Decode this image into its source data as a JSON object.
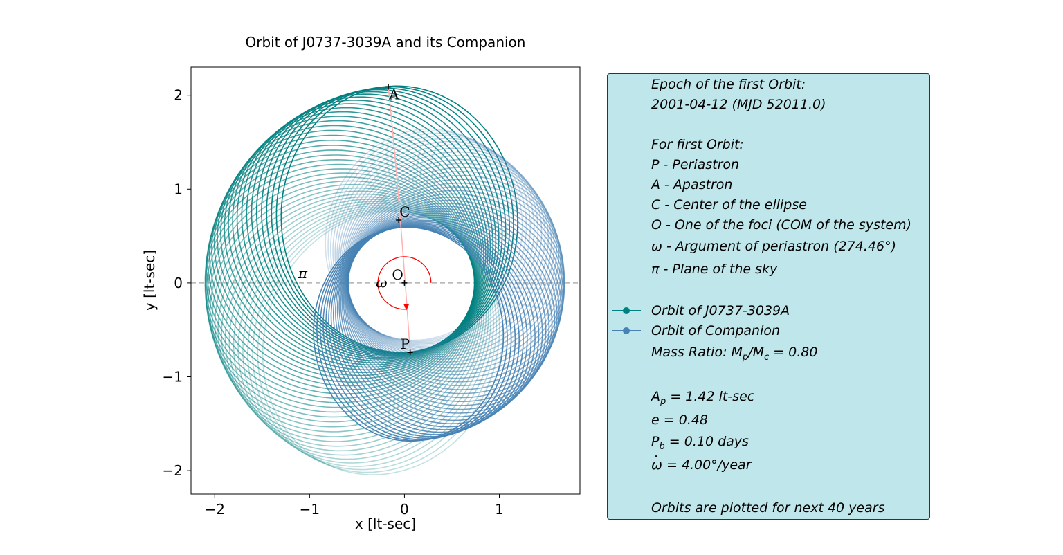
{
  "chart_data": {
    "type": "line",
    "title": "Orbit of J0737-3039A and its Companion",
    "xlabel": "x [lt-sec]",
    "ylabel": "y [lt-sec]",
    "xlim": [
      -2.25,
      1.85
    ],
    "ylim": [
      -2.25,
      2.3
    ],
    "xticks": [
      -2,
      -1,
      0,
      1
    ],
    "yticks": [
      -2,
      -1,
      0,
      1,
      2
    ],
    "xtick_labels": [
      "−2",
      "−1",
      "0",
      "1"
    ],
    "ytick_labels": [
      "−2",
      "−1",
      "0",
      "1",
      "2"
    ],
    "grid": false,
    "series": [
      {
        "name": "Orbit of J0737-3039A",
        "color": "#008080",
        "semi_major_axis": 1.42,
        "eccentricity": 0.48,
        "omega_start_deg": 274.46,
        "omega_dot_deg_per_year": 4.0,
        "years": 40
      },
      {
        "name": "Orbit of Companion",
        "color": "#4682b4",
        "semi_major_axis": 1.14,
        "eccentricity": 0.48,
        "omega_start_deg": 94.46,
        "omega_dot_deg_per_year": 4.0,
        "years": 40
      }
    ],
    "sky_plane_line": {
      "y": 0,
      "color": "#b0b0b0",
      "style": "dashed"
    },
    "points": [
      {
        "label": "A",
        "x": -0.17,
        "y": 2.09
      },
      {
        "label": "C",
        "x": -0.06,
        "y": 0.67
      },
      {
        "label": "O",
        "x": 0.0,
        "y": 0.0
      },
      {
        "label": "P",
        "x": 0.06,
        "y": -0.74
      }
    ],
    "symbol_labels": {
      "pi": "π",
      "omega": "ω"
    },
    "omega_arc_color": "#ff0000",
    "apsis_line_color": "#ffb0b0"
  },
  "info": {
    "epoch_title": "Epoch of the first Orbit:",
    "epoch_value": "2001-04-12 (MJD 52011.0)",
    "for_first": "For first Orbit:",
    "p_def": "P - Periastron",
    "a_def": "A - Apastron",
    "c_def": "C - Center of the ellipse",
    "o_def": "O - One of the foci (COM of the system)",
    "omega_def": "ω - Argument of periastron (274.46°)",
    "pi_def": "π - Plane of the sky",
    "legend_a": "Orbit of J0737-3039A",
    "legend_c": "Orbit of Companion",
    "mass_ratio_prefix": "Mass Ratio: M",
    "mass_ratio_sub1": "p",
    "mass_ratio_mid": "/M",
    "mass_ratio_sub2": "c",
    "mass_ratio_suffix": " =  0.80",
    "ap_prefix": "A",
    "ap_sub": "p",
    "ap_suffix": " = 1.42 lt-sec",
    "e_value": "e = 0.48",
    "pb_prefix": "P",
    "pb_sub": "b",
    "pb_suffix": " = 0.10 days",
    "omega_dot_symbol": "ω",
    "omega_dot_suffix": " = 4.00°/year",
    "plotted_note": "Orbits are plotted for next 40 years",
    "legend_color_a": "#008080",
    "legend_color_c": "#4682b4"
  }
}
